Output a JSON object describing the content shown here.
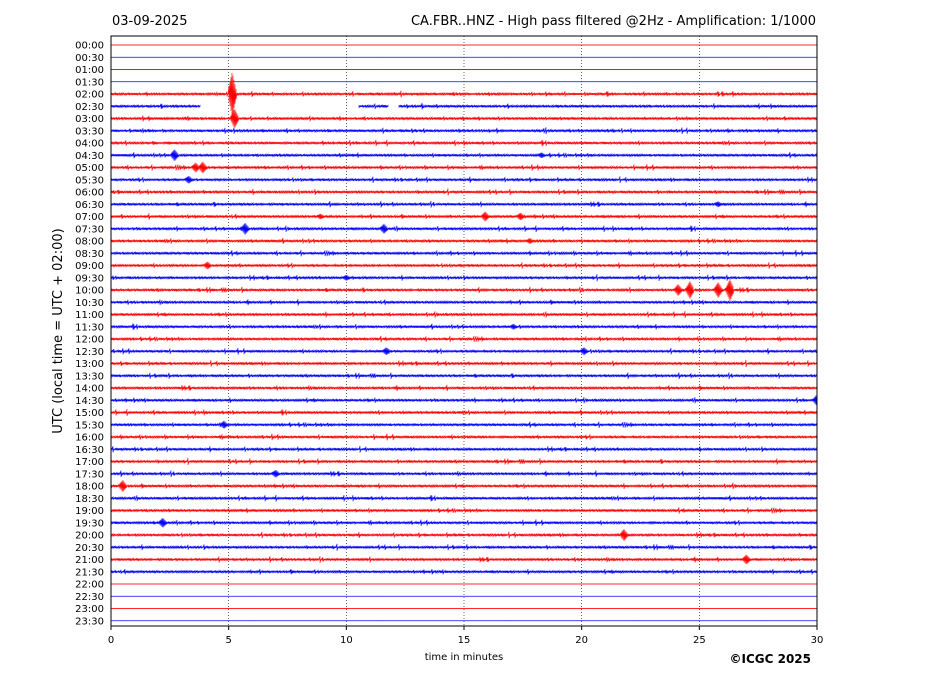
{
  "chart_data": {
    "type": "line",
    "date_label": "03-09-2025",
    "title": "CA.FBR..HNZ - High pass filtered @2Hz - Amplification: 1/1000",
    "ylabel": "UTC (local time = UTC + 02:00)",
    "xlabel": "time in minutes",
    "copyright": "©ICGC 2025",
    "xlim": [
      0,
      30
    ],
    "x_ticks": [
      0,
      5,
      10,
      15,
      20,
      25,
      30
    ],
    "vertical_gridlines": [
      5,
      10,
      15,
      20,
      25
    ],
    "trace_colors": {
      "even": "#ff0000",
      "odd": "#0000ff"
    },
    "rows": [
      "00:00",
      "00:30",
      "01:00",
      "01:30",
      "02:00",
      "02:30",
      "03:00",
      "03:30",
      "04:00",
      "04:30",
      "05:00",
      "05:30",
      "06:00",
      "06:30",
      "07:00",
      "07:30",
      "08:00",
      "08:30",
      "09:00",
      "09:30",
      "10:00",
      "10:30",
      "11:00",
      "11:30",
      "12:00",
      "12:30",
      "13:00",
      "13:30",
      "14:00",
      "14:30",
      "15:00",
      "15:30",
      "16:00",
      "16:30",
      "17:00",
      "17:30",
      "18:00",
      "18:30",
      "19:00",
      "19:30",
      "20:00",
      "20:30",
      "21:00",
      "21:30",
      "22:00",
      "22:30",
      "23:00",
      "23:30"
    ],
    "data_gaps": [
      {
        "row": "02:30",
        "from": 3.8,
        "to": 10.5
      },
      {
        "row": "02:30",
        "from": 11.8,
        "to": 12.2
      }
    ],
    "events": [
      {
        "row": "02:00",
        "minute": 5.15,
        "amplitude": 22
      },
      {
        "row": "02:30",
        "minute": 5.2,
        "amplitude": 20
      },
      {
        "row": "03:00",
        "minute": 5.25,
        "amplitude": 10
      },
      {
        "row": "04:30",
        "minute": 2.7,
        "amplitude": 6
      },
      {
        "row": "04:30",
        "minute": 18.3,
        "amplitude": 3
      },
      {
        "row": "05:00",
        "minute": 3.6,
        "amplitude": 5
      },
      {
        "row": "05:00",
        "minute": 3.9,
        "amplitude": 6
      },
      {
        "row": "05:30",
        "minute": 3.3,
        "amplitude": 4
      },
      {
        "row": "06:30",
        "minute": 25.8,
        "amplitude": 3
      },
      {
        "row": "07:00",
        "minute": 8.9,
        "amplitude": 3
      },
      {
        "row": "07:00",
        "minute": 15.9,
        "amplitude": 5
      },
      {
        "row": "07:00",
        "minute": 17.4,
        "amplitude": 4
      },
      {
        "row": "07:30",
        "minute": 5.7,
        "amplitude": 6
      },
      {
        "row": "07:30",
        "minute": 11.6,
        "amplitude": 5
      },
      {
        "row": "08:00",
        "minute": 17.8,
        "amplitude": 3
      },
      {
        "row": "09:00",
        "minute": 4.1,
        "amplitude": 4
      },
      {
        "row": "09:30",
        "minute": 10.0,
        "amplitude": 3
      },
      {
        "row": "10:00",
        "minute": 24.1,
        "amplitude": 6
      },
      {
        "row": "10:00",
        "minute": 24.6,
        "amplitude": 9
      },
      {
        "row": "10:00",
        "minute": 25.8,
        "amplitude": 8
      },
      {
        "row": "10:00",
        "minute": 26.3,
        "amplitude": 11
      },
      {
        "row": "11:30",
        "minute": 17.1,
        "amplitude": 3
      },
      {
        "row": "12:30",
        "minute": 11.7,
        "amplitude": 4
      },
      {
        "row": "12:30",
        "minute": 20.1,
        "amplitude": 4
      },
      {
        "row": "14:30",
        "minute": 30.0,
        "amplitude": 6
      },
      {
        "row": "15:30",
        "minute": 4.8,
        "amplitude": 4
      },
      {
        "row": "17:30",
        "minute": 7.0,
        "amplitude": 4
      },
      {
        "row": "18:00",
        "minute": 0.5,
        "amplitude": 6
      },
      {
        "row": "19:30",
        "minute": 2.2,
        "amplitude": 5
      },
      {
        "row": "20:00",
        "minute": 21.8,
        "amplitude": 6
      },
      {
        "row": "21:00",
        "minute": 27.0,
        "amplitude": 5
      }
    ]
  }
}
